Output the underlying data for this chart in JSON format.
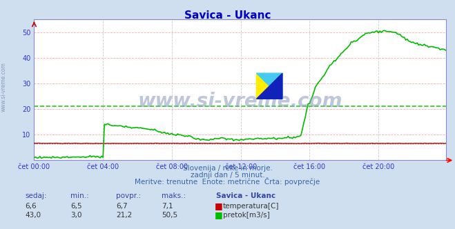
{
  "title": "Savica - Ukanc",
  "title_color": "#0000cc",
  "bg_color": "#d0dff0",
  "plot_bg_color": "#ffffff",
  "grid_color_h": "#ffaaaa",
  "grid_color_v": "#dddddd",
  "xlabel_ticks": [
    "čet 00:00",
    "čet 04:00",
    "čet 08:00",
    "čet 12:00",
    "čet 16:00",
    "čet 20:00"
  ],
  "xtick_positions": [
    0,
    48,
    96,
    144,
    192,
    240
  ],
  "ylim": [
    0,
    55
  ],
  "yticks": [
    10,
    20,
    30,
    40,
    50
  ],
  "total_points": 288,
  "temp_color": "#cc0000",
  "flow_color": "#00bb00",
  "avg_flow_color": "#00cc00",
  "avg_flow": 21.2,
  "avg_temp": 6.7,
  "sub_text1": "Slovenija / reke in morje.",
  "sub_text2": "zadnji dan / 5 minut.",
  "sub_text3": "Meritve: trenutne  Enote: metrične  Črta: povprečje",
  "legend_temp": "temperatura[C]",
  "legend_flow": "pretok[m3/s]",
  "axis_label_color": "#3333cc",
  "text_color": "#3366aa",
  "footer_text_color": "#3344aa",
  "footer_val_color": "#333333",
  "headers": [
    "sedaj:",
    "min.:",
    "povpr.:",
    "maks.:",
    "Savica - Ukanc"
  ],
  "temp_vals": [
    "6,6",
    "6,5",
    "6,7",
    "7,1"
  ],
  "flow_vals": [
    "43,0",
    "3,0",
    "21,2",
    "50,5"
  ]
}
